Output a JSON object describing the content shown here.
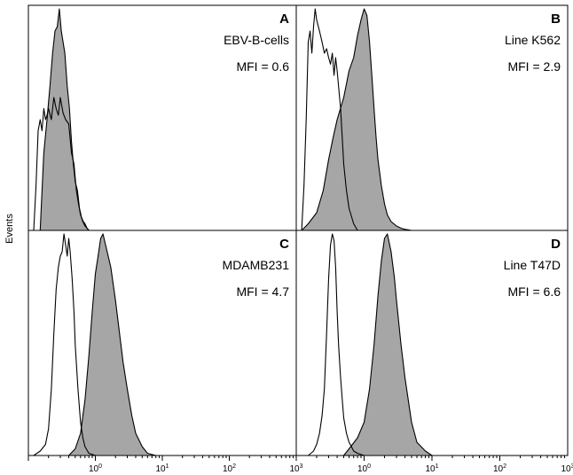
{
  "figure": {
    "ylabel": "Events",
    "tick_labels": [
      "10",
      "10",
      "10",
      "10",
      "10",
      "10",
      "10",
      "10"
    ],
    "tick_exponents": [
      "0",
      "1",
      "2",
      "3",
      "0",
      "1",
      "2",
      "3"
    ],
    "colors": {
      "control_fill": "#ffffff",
      "stained_fill": "#a6a6a6",
      "stroke": "#000000"
    }
  },
  "chart_data": [
    {
      "type": "area",
      "panel": "A",
      "label": "EBV-B-cells",
      "mfi": "MFI = 0.6",
      "xscale": "log",
      "xlim": [
        0.1,
        1000
      ],
      "ylim": [
        0,
        1
      ],
      "series": [
        {
          "kind": "control",
          "x": [
            0.12,
            0.13,
            0.14,
            0.15,
            0.16,
            0.17,
            0.18,
            0.19,
            0.2,
            0.22,
            0.24,
            0.26,
            0.28,
            0.3,
            0.33,
            0.36,
            0.4,
            0.44,
            0.48,
            0.52,
            0.56,
            0.6,
            0.65,
            0.7,
            0.75,
            0.8
          ],
          "y": [
            0.0,
            0.2,
            0.45,
            0.5,
            0.45,
            0.55,
            0.5,
            0.52,
            0.55,
            0.5,
            0.6,
            0.55,
            0.52,
            0.6,
            0.53,
            0.5,
            0.48,
            0.35,
            0.3,
            0.18,
            0.12,
            0.07,
            0.04,
            0.02,
            0.01,
            0.0
          ]
        },
        {
          "kind": "stained",
          "x": [
            0.15,
            0.17,
            0.19,
            0.21,
            0.23,
            0.25,
            0.27,
            0.29,
            0.31,
            0.33,
            0.35,
            0.38,
            0.41,
            0.44,
            0.47,
            0.5,
            0.54,
            0.58,
            0.62,
            0.66,
            0.7,
            0.75,
            0.8
          ],
          "y": [
            0.0,
            0.35,
            0.5,
            0.65,
            0.8,
            0.9,
            0.92,
            1.0,
            0.9,
            0.85,
            0.8,
            0.65,
            0.55,
            0.4,
            0.3,
            0.22,
            0.18,
            0.1,
            0.06,
            0.04,
            0.03,
            0.01,
            0.0
          ]
        }
      ]
    },
    {
      "type": "area",
      "panel": "B",
      "label": "Line K562",
      "mfi": "MFI = 2.9",
      "xscale": "log",
      "xlim": [
        0.1,
        1000
      ],
      "ylim": [
        0,
        1
      ],
      "series": [
        {
          "kind": "control",
          "x": [
            0.12,
            0.13,
            0.14,
            0.15,
            0.16,
            0.17,
            0.18,
            0.19,
            0.2,
            0.22,
            0.24,
            0.26,
            0.28,
            0.3,
            0.32,
            0.34,
            0.36,
            0.38,
            0.4,
            0.42,
            0.45,
            0.48,
            0.5,
            0.55,
            0.6,
            0.7,
            0.8
          ],
          "y": [
            0.0,
            0.2,
            0.5,
            0.85,
            0.9,
            0.8,
            0.92,
            1.0,
            0.95,
            0.9,
            0.85,
            0.8,
            0.82,
            0.78,
            0.75,
            0.8,
            0.7,
            0.78,
            0.72,
            0.65,
            0.55,
            0.4,
            0.3,
            0.18,
            0.1,
            0.03,
            0.0
          ]
        },
        {
          "kind": "stained",
          "x": [
            0.12,
            0.15,
            0.2,
            0.25,
            0.3,
            0.35,
            0.4,
            0.5,
            0.6,
            0.7,
            0.8,
            0.9,
            1.0,
            1.1,
            1.2,
            1.3,
            1.4,
            1.5,
            1.6,
            1.8,
            2.0,
            2.2,
            2.5,
            3.0,
            3.5,
            4.0,
            5.0
          ],
          "y": [
            0.0,
            0.03,
            0.08,
            0.18,
            0.32,
            0.42,
            0.5,
            0.6,
            0.72,
            0.78,
            0.88,
            0.95,
            1.0,
            0.97,
            0.85,
            0.7,
            0.55,
            0.42,
            0.32,
            0.2,
            0.12,
            0.07,
            0.04,
            0.02,
            0.01,
            0.005,
            0.0
          ]
        }
      ]
    },
    {
      "type": "area",
      "panel": "C",
      "label": "MDAMB231",
      "mfi": "MFI = 4.7",
      "xscale": "log",
      "xlim": [
        0.1,
        1000
      ],
      "ylim": [
        0,
        1
      ],
      "series": [
        {
          "kind": "control",
          "x": [
            0.12,
            0.15,
            0.18,
            0.2,
            0.22,
            0.24,
            0.26,
            0.28,
            0.3,
            0.32,
            0.34,
            0.36,
            0.38,
            0.4,
            0.42,
            0.45,
            0.48,
            0.5,
            0.55,
            0.6,
            0.65,
            0.7,
            0.8,
            1.0
          ],
          "y": [
            0.0,
            0.02,
            0.05,
            0.12,
            0.3,
            0.55,
            0.75,
            0.85,
            0.9,
            0.92,
            1.0,
            0.95,
            0.9,
            0.98,
            0.92,
            0.8,
            0.65,
            0.5,
            0.3,
            0.15,
            0.08,
            0.04,
            0.01,
            0.0
          ]
        },
        {
          "kind": "stained",
          "x": [
            0.4,
            0.5,
            0.6,
            0.7,
            0.8,
            0.9,
            1.0,
            1.1,
            1.2,
            1.3,
            1.5,
            1.7,
            2.0,
            2.3,
            2.6,
            3.0,
            3.5,
            4.0,
            5.0,
            6.0,
            8.0
          ],
          "y": [
            0.0,
            0.03,
            0.1,
            0.25,
            0.45,
            0.65,
            0.82,
            0.9,
            0.98,
            1.0,
            0.92,
            0.85,
            0.7,
            0.55,
            0.42,
            0.3,
            0.18,
            0.1,
            0.04,
            0.01,
            0.0
          ]
        }
      ]
    },
    {
      "type": "area",
      "panel": "D",
      "label": "Line T47D",
      "mfi": "MFI = 6.6",
      "xscale": "log",
      "xlim": [
        0.1,
        1000
      ],
      "ylim": [
        0,
        1
      ],
      "series": [
        {
          "kind": "control",
          "x": [
            0.15,
            0.18,
            0.2,
            0.22,
            0.24,
            0.26,
            0.28,
            0.3,
            0.32,
            0.34,
            0.36,
            0.38,
            0.4,
            0.42,
            0.45,
            0.48,
            0.5,
            0.55,
            0.6,
            0.65,
            0.7,
            0.8,
            1.0
          ],
          "y": [
            0.0,
            0.02,
            0.05,
            0.1,
            0.18,
            0.3,
            0.55,
            0.8,
            0.95,
            1.0,
            0.97,
            0.85,
            0.65,
            0.5,
            0.35,
            0.24,
            0.17,
            0.1,
            0.06,
            0.04,
            0.02,
            0.01,
            0.0
          ]
        },
        {
          "kind": "stained",
          "x": [
            0.5,
            0.6,
            0.8,
            1.0,
            1.2,
            1.4,
            1.6,
            1.8,
            2.0,
            2.2,
            2.5,
            2.8,
            3.0,
            3.5,
            4.0,
            5.0,
            6.0,
            8.0,
            10.0
          ],
          "y": [
            0.0,
            0.03,
            0.08,
            0.15,
            0.3,
            0.5,
            0.72,
            0.88,
            0.98,
            1.0,
            0.92,
            0.8,
            0.7,
            0.5,
            0.35,
            0.15,
            0.06,
            0.02,
            0.0
          ]
        }
      ]
    }
  ]
}
